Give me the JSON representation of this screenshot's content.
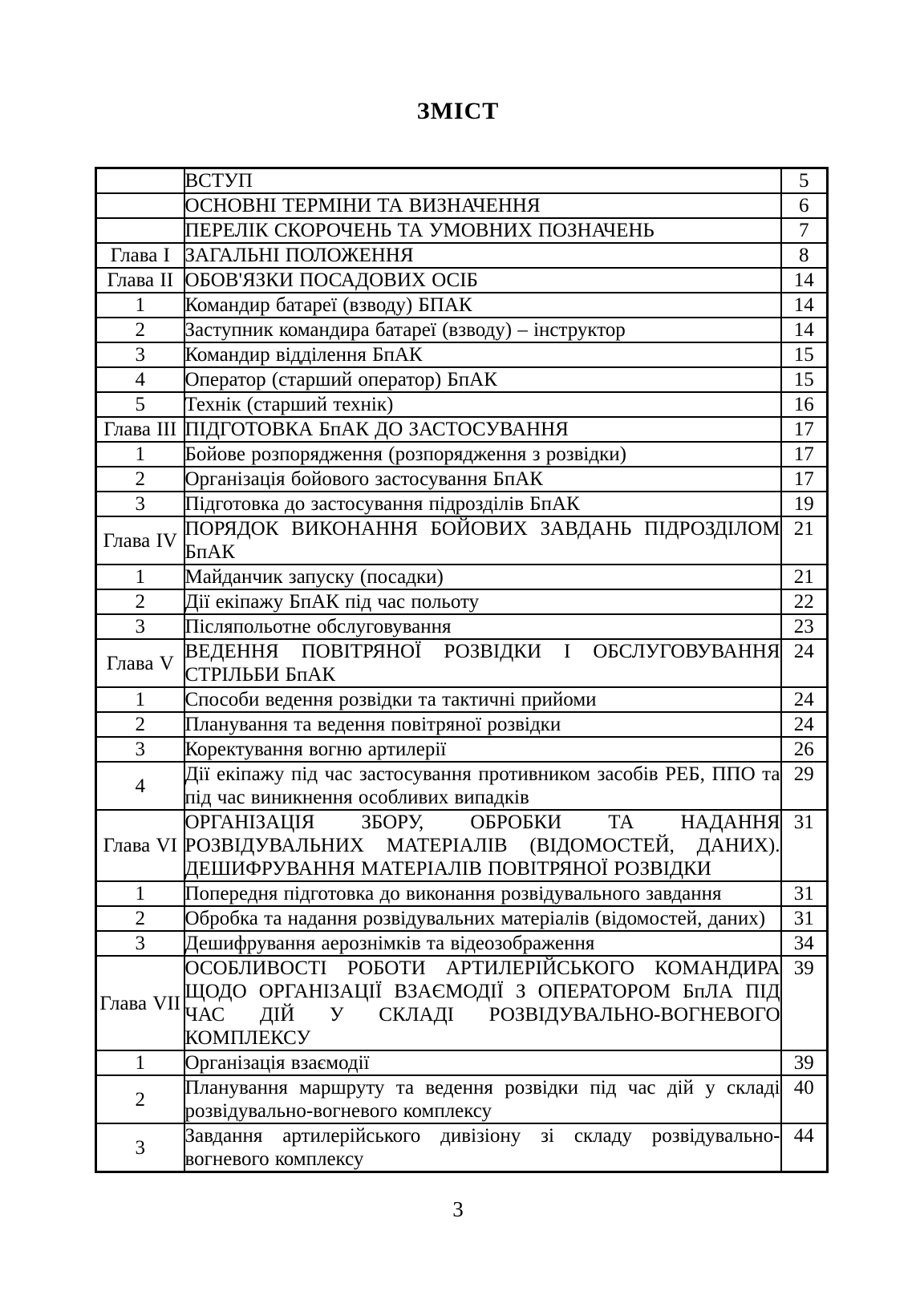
{
  "page": {
    "title": "ЗМІСТ",
    "footer_page_number": "3"
  },
  "colors": {
    "text": "#000000",
    "background": "#ffffff",
    "table_border": "#000000"
  },
  "toc": {
    "columns": [
      "chapter_or_item_number",
      "section_title",
      "page_number"
    ],
    "rows": [
      {
        "label": "",
        "title": "ВСТУП",
        "page": "5"
      },
      {
        "label": "",
        "title": "ОСНОВНІ ТЕРМІНИ ТА ВИЗНАЧЕННЯ",
        "page": "6"
      },
      {
        "label": "",
        "title": "ПЕРЕЛІК СКОРОЧЕНЬ ТА УМОВНИХ ПОЗНАЧЕНЬ",
        "page": "7"
      },
      {
        "label": "Глава I",
        "title": "ЗАГАЛЬНІ ПОЛОЖЕННЯ",
        "page": "8"
      },
      {
        "label": "Глава II",
        "title": "ОБОВ'ЯЗКИ ПОСАДОВИХ ОСІБ",
        "page": "14"
      },
      {
        "label": "1",
        "title": "Командир батареї (взводу) БПАК",
        "page": "14"
      },
      {
        "label": "2",
        "title": "Заступник командира батареї (взводу) – інструктор",
        "page": "14"
      },
      {
        "label": "3",
        "title": "Командир відділення БпАК",
        "page": "15"
      },
      {
        "label": "4",
        "title": "Оператор (старший оператор) БпАК",
        "page": "15"
      },
      {
        "label": "5",
        "title": "Технік (старший технік)",
        "page": "16"
      },
      {
        "label": "Глава III",
        "title": "ПІДГОТОВКА БпАК ДО ЗАСТОСУВАННЯ",
        "page": "17"
      },
      {
        "label": "1",
        "title": "Бойове розпорядження (розпорядження з розвідки)",
        "page": "17"
      },
      {
        "label": "2",
        "title": "Організація бойового застосування БпАК",
        "page": "17"
      },
      {
        "label": "3",
        "title": "Підготовка до застосування підрозділів БпАК",
        "page": "19"
      },
      {
        "label": "Глава IV",
        "title": "ПОРЯДОК ВИКОНАННЯ БОЙОВИХ ЗАВДАНЬ ПІДРОЗДІЛОМ БпАК",
        "page": "21"
      },
      {
        "label": "1",
        "title": "Майданчик запуску (посадки)",
        "page": "21"
      },
      {
        "label": "2",
        "title": "Дії екіпажу БпАК під час польоту",
        "page": "22"
      },
      {
        "label": "3",
        "title": "Післяпольотне обслуговування",
        "page": "23"
      },
      {
        "label": "Глава V",
        "title": "ВЕДЕННЯ ПОВІТРЯНОЇ РОЗВІДКИ І ОБСЛУГОВУВАННЯ СТРІЛЬБИ БпАК",
        "page": "24"
      },
      {
        "label": "1",
        "title": "Способи ведення розвідки та тактичні прийоми",
        "page": "24"
      },
      {
        "label": "2",
        "title": "Планування та ведення повітряної розвідки",
        "page": "24"
      },
      {
        "label": "3",
        "title": "Коректування вогню артилерії",
        "page": "26"
      },
      {
        "label": "4",
        "title": "Дії екіпажу під час застосування противником засобів РЕБ, ППО та під час виникнення особливих випадків",
        "page": "29"
      },
      {
        "label": "Глава VI",
        "title": "ОРГАНІЗАЦІЯ ЗБОРУ, ОБРОБКИ ТА НАДАННЯ РОЗВІДУВАЛЬНИХ МАТЕРІАЛІВ (ВІДОМОСТЕЙ, ДАНИХ). ДЕШИФРУВАННЯ МАТЕРІАЛІВ ПОВІТРЯНОЇ РОЗВІДКИ",
        "page": "31"
      },
      {
        "label": "1",
        "title": "Попередня підготовка до виконання розвідувального завдання",
        "page": "31"
      },
      {
        "label": "2",
        "title": "Обробка та надання розвідувальних матеріалів (відомостей, даних)",
        "page": "31"
      },
      {
        "label": "3",
        "title": "Дешифрування аерознімків та відеозображення",
        "page": "34"
      },
      {
        "label": "Глава VII",
        "title": "ОСОБЛИВОСТІ РОБОТИ АРТИЛЕРІЙСЬКОГО КОМАНДИРА ЩОДО ОРГАНІЗАЦІЇ ВЗАЄМОДІЇ З ОПЕРАТОРОМ БпЛА ПІД ЧАС ДІЙ У СКЛАДІ РОЗВІДУВАЛЬНО-ВОГНЕВОГО КОМПЛЕКСУ",
        "page": "39"
      },
      {
        "label": "1",
        "title": "Організація взаємодії",
        "page": "39"
      },
      {
        "label": "2",
        "title": "Планування маршруту та ведення розвідки під час дій у складі розвідувально-вогневого комплексу",
        "page": "40"
      },
      {
        "label": "3",
        "title": "Завдання артилерійського дивізіону зі складу розвідувально-вогневого комплексу",
        "page": "44"
      }
    ]
  }
}
